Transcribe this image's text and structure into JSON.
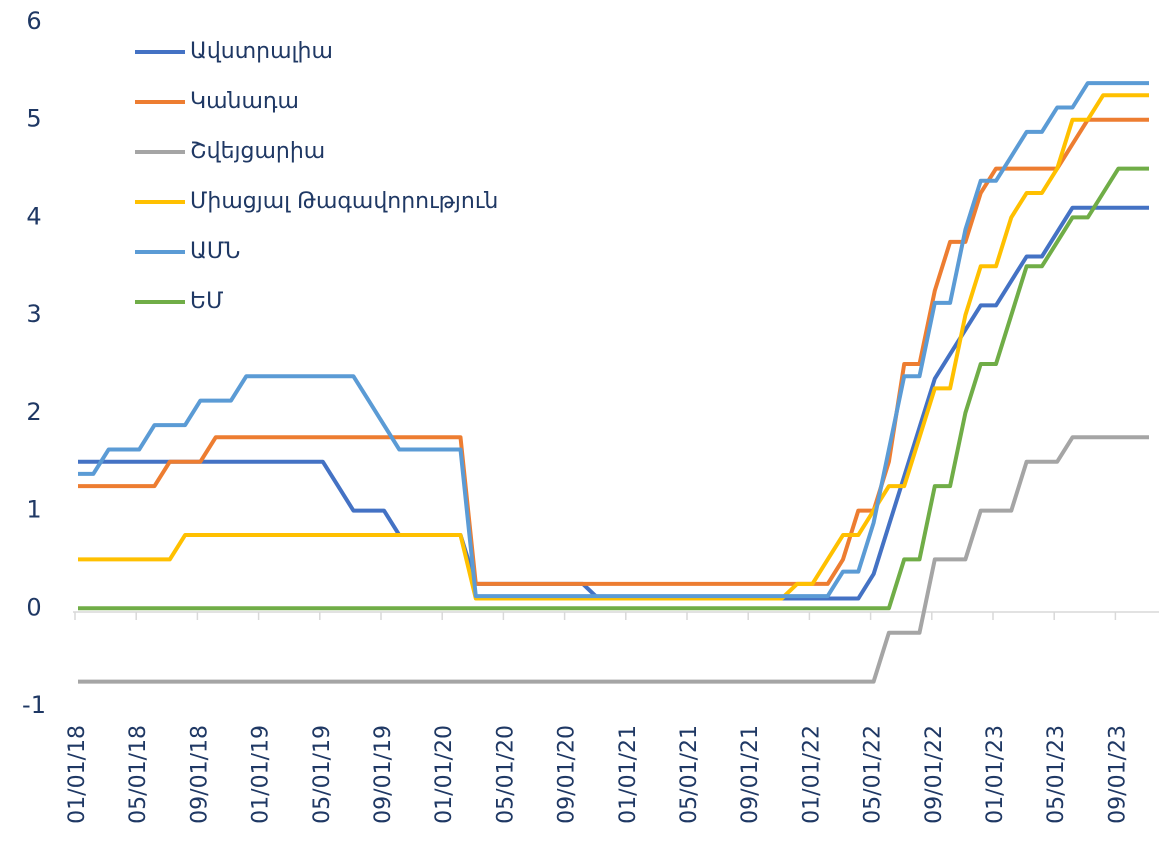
{
  "chart_data": {
    "type": "line",
    "categories": [
      "01/01/18",
      null,
      null,
      null,
      "05/01/18",
      null,
      null,
      null,
      "09/01/18",
      null,
      null,
      null,
      "01/01/19",
      null,
      null,
      null,
      "05/01/19",
      null,
      null,
      null,
      "09/01/19",
      null,
      null,
      null,
      "01/01/20",
      null,
      null,
      null,
      "05/01/20",
      null,
      null,
      null,
      "09/01/20",
      null,
      null,
      null,
      "01/01/21",
      null,
      null,
      null,
      "05/01/21",
      null,
      null,
      null,
      "09/01/21",
      null,
      null,
      null,
      "01/01/22",
      null,
      null,
      null,
      "05/01/22",
      null,
      null,
      null,
      "09/01/22",
      null,
      null,
      null,
      "01/01/23",
      null,
      null,
      null,
      "05/01/23",
      null,
      null,
      null,
      "09/01/23",
      null,
      null
    ],
    "ylim": [
      -1,
      6
    ],
    "yticks": [
      -1,
      0,
      1,
      2,
      3,
      4,
      5,
      6
    ],
    "grid": false,
    "legend": "upper left",
    "series": [
      {
        "name": "Ավստրալիա",
        "color": "#4472c4",
        "values": [
          1.5,
          1.5,
          1.5,
          1.5,
          1.5,
          1.5,
          1.5,
          1.5,
          1.5,
          1.5,
          1.5,
          1.5,
          1.5,
          1.5,
          1.5,
          1.5,
          1.5,
          1.25,
          1.0,
          1.0,
          1.0,
          0.75,
          0.75,
          0.75,
          0.75,
          0.75,
          0.25,
          0.25,
          0.25,
          0.25,
          0.25,
          0.25,
          0.25,
          0.25,
          0.1,
          0.1,
          0.1,
          0.1,
          0.1,
          0.1,
          0.1,
          0.1,
          0.1,
          0.1,
          0.1,
          0.1,
          0.1,
          0.1,
          0.1,
          0.1,
          0.1,
          0.1,
          0.35,
          0.85,
          1.35,
          1.85,
          2.35,
          2.6,
          2.85,
          3.1,
          3.1,
          3.35,
          3.6,
          3.6,
          3.85,
          4.1,
          4.1,
          4.1,
          4.1,
          4.1,
          4.1
        ]
      },
      {
        "name": "Կանադա",
        "color": "#ed7d31",
        "values": [
          1.25,
          1.25,
          1.25,
          1.25,
          1.25,
          1.25,
          1.5,
          1.5,
          1.5,
          1.75,
          1.75,
          1.75,
          1.75,
          1.75,
          1.75,
          1.75,
          1.75,
          1.75,
          1.75,
          1.75,
          1.75,
          1.75,
          1.75,
          1.75,
          1.75,
          1.75,
          0.25,
          0.25,
          0.25,
          0.25,
          0.25,
          0.25,
          0.25,
          0.25,
          0.25,
          0.25,
          0.25,
          0.25,
          0.25,
          0.25,
          0.25,
          0.25,
          0.25,
          0.25,
          0.25,
          0.25,
          0.25,
          0.25,
          0.25,
          0.25,
          0.5,
          1.0,
          1.0,
          1.5,
          2.5,
          2.5,
          3.25,
          3.75,
          3.75,
          4.25,
          4.5,
          4.5,
          4.5,
          4.5,
          4.5,
          4.75,
          5.0,
          5.0,
          5.0,
          5.0,
          5.0
        ]
      },
      {
        "name": "Շվեյցարիա",
        "color": "#a5a5a5",
        "values": [
          -0.75,
          -0.75,
          -0.75,
          -0.75,
          -0.75,
          -0.75,
          -0.75,
          -0.75,
          -0.75,
          -0.75,
          -0.75,
          -0.75,
          -0.75,
          -0.75,
          -0.75,
          -0.75,
          -0.75,
          -0.75,
          -0.75,
          -0.75,
          -0.75,
          -0.75,
          -0.75,
          -0.75,
          -0.75,
          -0.75,
          -0.75,
          -0.75,
          -0.75,
          -0.75,
          -0.75,
          -0.75,
          -0.75,
          -0.75,
          -0.75,
          -0.75,
          -0.75,
          -0.75,
          -0.75,
          -0.75,
          -0.75,
          -0.75,
          -0.75,
          -0.75,
          -0.75,
          -0.75,
          -0.75,
          -0.75,
          -0.75,
          -0.75,
          -0.75,
          -0.75,
          -0.75,
          -0.25,
          -0.25,
          -0.25,
          0.5,
          0.5,
          0.5,
          1.0,
          1.0,
          1.0,
          1.5,
          1.5,
          1.5,
          1.75,
          1.75,
          1.75,
          1.75,
          1.75,
          1.75
        ]
      },
      {
        "name": "Միացյալ Թագավորություն",
        "color": "#ffc000",
        "values": [
          0.5,
          0.5,
          0.5,
          0.5,
          0.5,
          0.5,
          0.5,
          0.75,
          0.75,
          0.75,
          0.75,
          0.75,
          0.75,
          0.75,
          0.75,
          0.75,
          0.75,
          0.75,
          0.75,
          0.75,
          0.75,
          0.75,
          0.75,
          0.75,
          0.75,
          0.75,
          0.1,
          0.1,
          0.1,
          0.1,
          0.1,
          0.1,
          0.1,
          0.1,
          0.1,
          0.1,
          0.1,
          0.1,
          0.1,
          0.1,
          0.1,
          0.1,
          0.1,
          0.1,
          0.1,
          0.1,
          0.1,
          0.25,
          0.25,
          0.5,
          0.75,
          0.75,
          1.0,
          1.25,
          1.25,
          1.75,
          2.25,
          2.25,
          3.0,
          3.5,
          3.5,
          4.0,
          4.25,
          4.25,
          4.5,
          5.0,
          5.0,
          5.25,
          5.25,
          5.25,
          5.25
        ]
      },
      {
        "name": "ԱՄՆ",
        "color": "#5b9bd5",
        "values": [
          1.375,
          1.375,
          1.625,
          1.625,
          1.625,
          1.875,
          1.875,
          1.875,
          2.125,
          2.125,
          2.125,
          2.375,
          2.375,
          2.375,
          2.375,
          2.375,
          2.375,
          2.375,
          2.375,
          2.125,
          1.875,
          1.625,
          1.625,
          1.625,
          1.625,
          1.625,
          0.125,
          0.125,
          0.125,
          0.125,
          0.125,
          0.125,
          0.125,
          0.125,
          0.125,
          0.125,
          0.125,
          0.125,
          0.125,
          0.125,
          0.125,
          0.125,
          0.125,
          0.125,
          0.125,
          0.125,
          0.125,
          0.125,
          0.125,
          0.125,
          0.375,
          0.375,
          0.875,
          1.625,
          2.375,
          2.375,
          3.125,
          3.125,
          3.875,
          4.375,
          4.375,
          4.625,
          4.875,
          4.875,
          5.125,
          5.125,
          5.375,
          5.375,
          5.375,
          5.375,
          5.375
        ]
      },
      {
        "name": "ԵՄ",
        "color": "#70ad47",
        "values": [
          0,
          0,
          0,
          0,
          0,
          0,
          0,
          0,
          0,
          0,
          0,
          0,
          0,
          0,
          0,
          0,
          0,
          0,
          0,
          0,
          0,
          0,
          0,
          0,
          0,
          0,
          0,
          0,
          0,
          0,
          0,
          0,
          0,
          0,
          0,
          0,
          0,
          0,
          0,
          0,
          0,
          0,
          0,
          0,
          0,
          0,
          0,
          0,
          0,
          0,
          0,
          0,
          0,
          0,
          0.5,
          0.5,
          1.25,
          1.25,
          2.0,
          2.5,
          2.5,
          3.0,
          3.5,
          3.5,
          3.75,
          4.0,
          4.0,
          4.25,
          4.5,
          4.5,
          4.5
        ]
      }
    ]
  }
}
